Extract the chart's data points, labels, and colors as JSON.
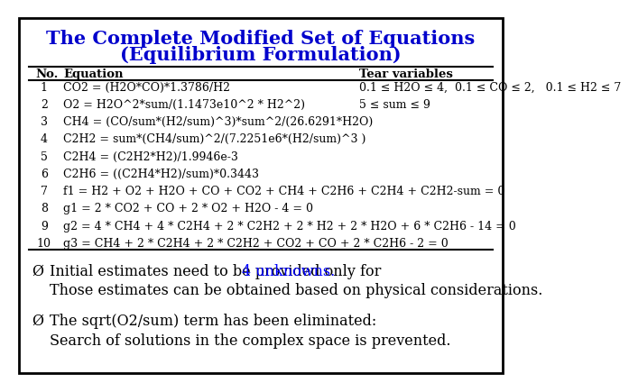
{
  "title_line1": "The Complete Modified Set of Equations",
  "title_line2": "(Equilibrium Formulation)",
  "title_color": "#0000CC",
  "title_fontsize": 15,
  "bg_color": "#FFFFFF",
  "border_color": "#000000",
  "rows": [
    [
      "1",
      "CO2 = (H2O*CO)*1.3786/H2",
      "0.1 ≤ H2O ≤ 4,  0.1 ≤ CO ≤ 2,   0.1 ≤ H2 ≤ 7"
    ],
    [
      "2",
      "O2 = H2O^2*sum/(1.1473e10^2 * H2^2)",
      "5 ≤ sum ≤ 9"
    ],
    [
      "3",
      "CH4 = (CO/sum*(H2/sum)^3)*sum^2/(26.6291*H2O)",
      ""
    ],
    [
      "4",
      "C2H2 = sum*(CH4/sum)^2/(7.2251e6*(H2/sum)^3 )",
      ""
    ],
    [
      "5",
      "C2H4 = (C2H2*H2)/1.9946e-3",
      ""
    ],
    [
      "6",
      "C2H6 = ((C2H4*H2)/sum)*0.3443",
      ""
    ],
    [
      "7",
      "f1 = H2 + O2 + H2O + CO + CO2 + CH4 + C2H6 + C2H4 + C2H2-sum = 0",
      ""
    ],
    [
      "8",
      "g1 = 2 * CO2 + CO + 2 * O2 + H2O - 4 = 0",
      ""
    ],
    [
      "9",
      "g2 = 4 * CH4 + 4 * C2H4 + 2 * C2H2 + 2 * H2 + 2 * H2O + 6 * C2H6 - 14 = 0",
      ""
    ],
    [
      "10",
      "g3 = CH4 + 2 * C2H4 + 2 * C2H2 + CO2 + CO + 2 * C2H6 - 2 = 0",
      ""
    ]
  ],
  "bullet1_normal": "Initial estimates need to be provided only for ",
  "bullet1_highlight": "4 unknowns",
  "bullet1_normal2": ".",
  "bullet1_line2": "Those estimates can be obtained based on physical considerations.",
  "bullet2_line1": "The sqrt(O2/sum) term has been eliminated:",
  "bullet2_line2": "Search of solutions in the complex space is prevented.",
  "highlight_color": "#0000FF",
  "text_color": "#000000",
  "text_fontsize": 11.5,
  "table_fontsize": 9.0,
  "header_fontsize": 9.5
}
